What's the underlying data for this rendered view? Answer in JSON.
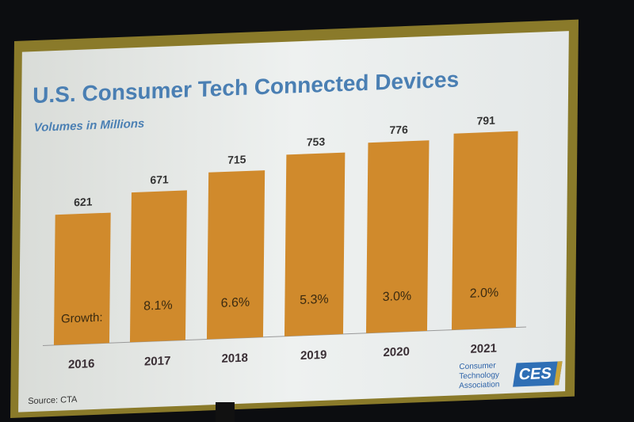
{
  "chart_data": {
    "type": "bar",
    "title": "U.S. Consumer Tech Connected Devices",
    "subtitle": "Volumes in Millions",
    "categories": [
      "2016",
      "2017",
      "2018",
      "2019",
      "2020",
      "2021"
    ],
    "values": [
      621,
      671,
      715,
      753,
      776,
      791
    ],
    "growth_label": "Growth:",
    "growth": [
      "",
      "8.1%",
      "6.6%",
      "5.3%",
      "3.0%",
      "2.0%"
    ],
    "bar_color": "#d08a2c",
    "source": "Source: CTA",
    "grid": false
  },
  "logo": {
    "line1": "Consumer",
    "line2": "Technology",
    "line3": "Association",
    "mark": "CES"
  }
}
